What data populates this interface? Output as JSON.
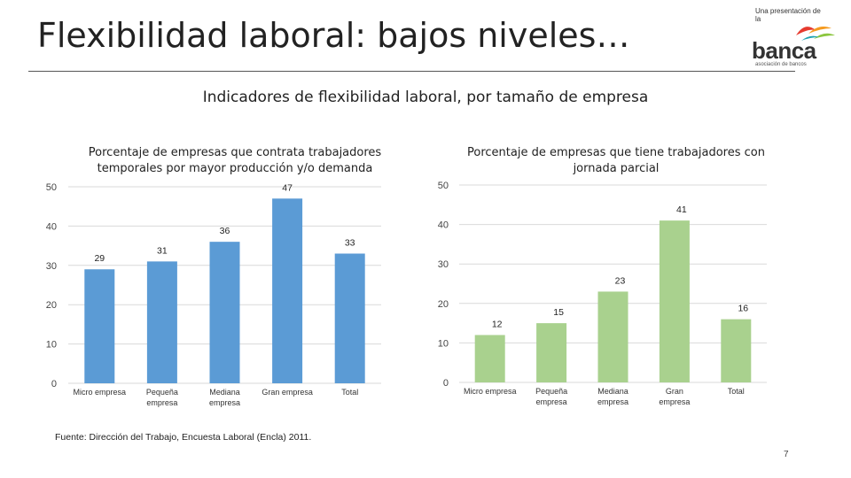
{
  "slide": {
    "title": "Flexibilidad laboral: bajos niveles…",
    "subtitle": "Indicadores de flexibilidad laboral, por tamaño de empresa",
    "source": "Fuente: Dirección del Trabajo, Encuesta Laboral (Encla) 2011.",
    "page_number": "7"
  },
  "logo": {
    "intro": "Una presentación de la",
    "word": "banca",
    "sub": "asociación de bancos",
    "colors": [
      "#e63a2e",
      "#f59a1e",
      "#8cc63f",
      "#1fa3b0"
    ]
  },
  "chart_data": [
    {
      "type": "bar",
      "title": "Porcentaje de empresas que contrata trabajadores temporales por mayor producción y/o demanda",
      "categories": [
        "Micro empresa",
        "Pequeña empresa",
        "Mediana empresa",
        "Gran empresa",
        "Total"
      ],
      "values": [
        29,
        31,
        36,
        47,
        33
      ],
      "ylim": [
        0,
        50
      ],
      "yticks": [
        0,
        10,
        20,
        30,
        40,
        50
      ],
      "color": "#5b9bd5",
      "grid": true,
      "xlabel": "",
      "ylabel": ""
    },
    {
      "type": "bar",
      "title": "Porcentaje de empresas que tiene trabajadores con jornada parcial",
      "categories": [
        "Micro empresa",
        "Pequeña empresa",
        "Mediana empresa",
        "Gran empresa",
        "Total"
      ],
      "values": [
        12,
        15,
        23,
        41,
        16
      ],
      "ylim": [
        0,
        50
      ],
      "yticks": [
        0,
        10,
        20,
        30,
        40,
        50
      ],
      "color": "#a9d18e",
      "grid": true,
      "xlabel": "",
      "ylabel": ""
    }
  ]
}
